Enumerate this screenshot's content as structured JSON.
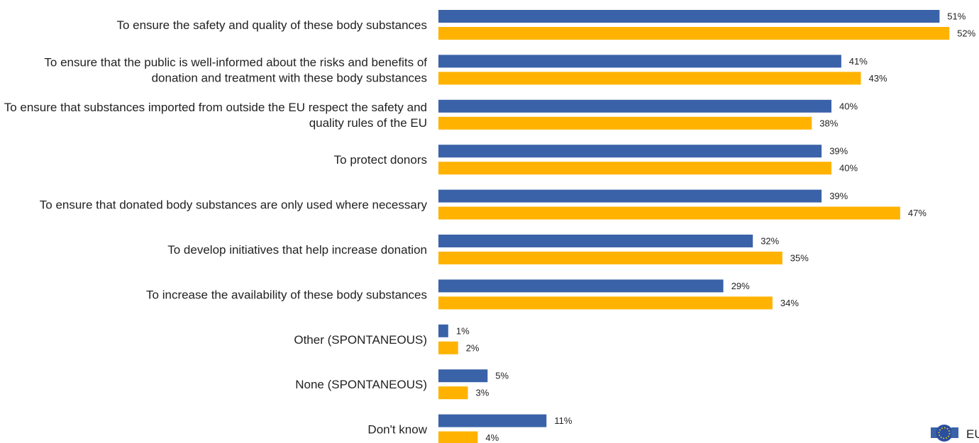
{
  "chart_data": {
    "type": "bar",
    "orientation": "horizontal",
    "categories": [
      "To ensure the safety and quality of these body substances",
      "To ensure that the public is well-informed about the risks and benefits of donation and treatment with these body substances",
      "To ensure that substances imported from outside the EU respect the safety and quality rules of the EU",
      "To protect donors",
      "To ensure that donated body substances are only used where necessary",
      "To develop initiatives that help increase donation",
      "To increase the availability of these body substances",
      "Other (SPONTANEOUS)",
      "None (SPONTANEOUS)",
      "Don't know"
    ],
    "category_lines": [
      [
        "To ensure the safety and quality of these body substances"
      ],
      [
        "To ensure that the public is well-informed about the risks and benefits of",
        "donation and treatment with these body substances"
      ],
      [
        "To ensure that substances imported from outside the EU respect the safety and",
        "quality rules of the EU"
      ],
      [
        "To protect donors"
      ],
      [
        "To ensure that donated body substances are only used where necessary"
      ],
      [
        "To develop initiatives that help increase donation"
      ],
      [
        "To increase the availability of these body substances"
      ],
      [
        "Other (SPONTANEOUS)"
      ],
      [
        "None (SPONTANEOUS)"
      ],
      [
        "Don't know"
      ]
    ],
    "series": [
      {
        "color": "#3A62A8",
        "values": [
          51,
          41,
          40,
          39,
          39,
          32,
          29,
          1,
          5,
          11
        ],
        "labels": [
          "51%",
          "41%",
          "40%",
          "39%",
          "39%",
          "32%",
          "29%",
          "1%",
          "5%",
          "11%"
        ]
      },
      {
        "color": "#FFB300",
        "values": [
          52,
          43,
          38,
          40,
          47,
          35,
          34,
          2,
          3,
          4
        ],
        "labels": [
          "52%",
          "43%",
          "38%",
          "40%",
          "47%",
          "35%",
          "34%",
          "2%",
          "3%",
          "4%"
        ]
      }
    ],
    "xlim": [
      0,
      52
    ],
    "unit": "%",
    "legend": {
      "position": "bottom-right",
      "icon": "eu-flag-icon",
      "text": "EU"
    }
  }
}
